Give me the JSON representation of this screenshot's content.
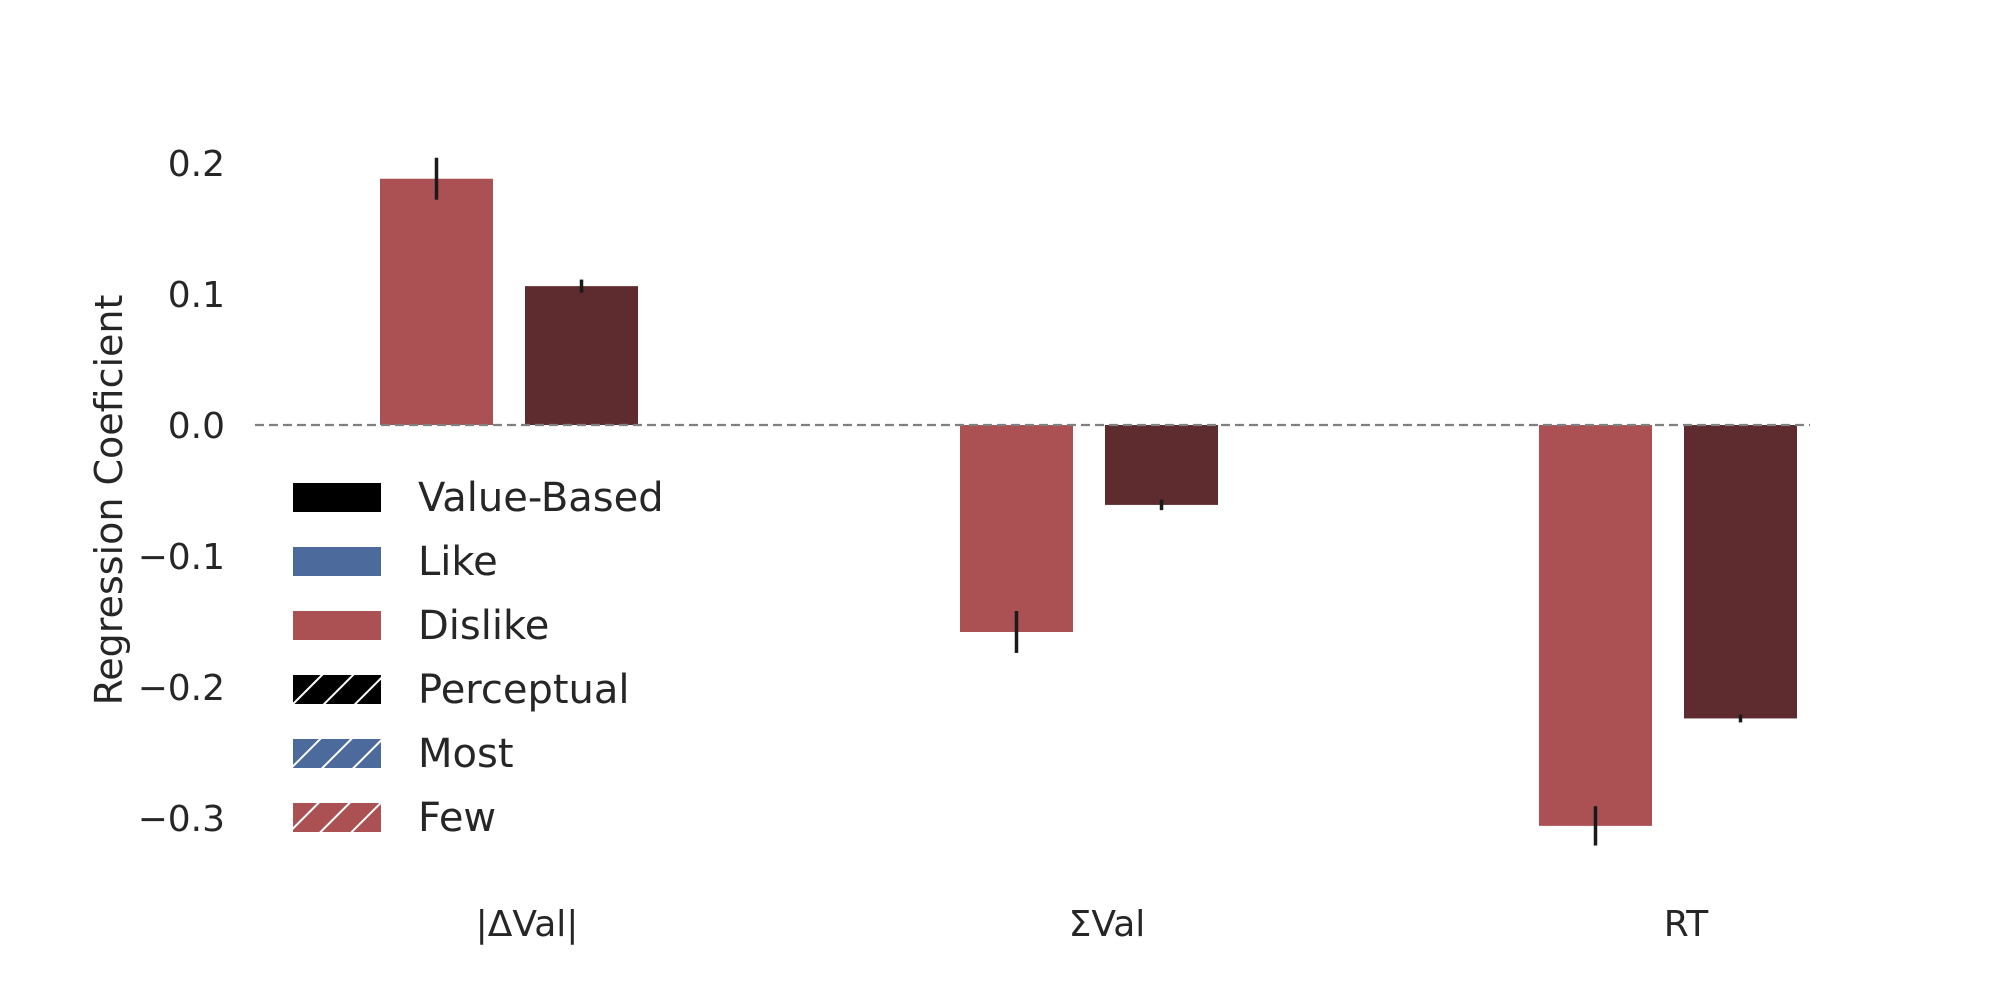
{
  "chart_data": {
    "type": "bar",
    "categories": [
      "|ΔVal|",
      "ΣVal",
      "RT"
    ],
    "series": [
      {
        "color": "#ab5053",
        "values": [
          0.188,
          -0.158,
          -0.306
        ],
        "errors": [
          0.016,
          0.016,
          0.015
        ]
      },
      {
        "color": "#5e2b2f",
        "values": [
          0.106,
          -0.061,
          -0.224
        ],
        "errors": [
          0.005,
          0.004,
          0.003
        ]
      }
    ],
    "ylabel": "Regression Coeficient",
    "xlabel": "",
    "ylim": [
      -0.33,
      0.22
    ],
    "yticks": [
      0.2,
      0.1,
      0.0,
      -0.1,
      -0.2,
      -0.3
    ],
    "ytick_labels": [
      "0.2",
      "0.1",
      "0.0",
      "−0.1",
      "−0.2",
      "−0.3"
    ],
    "zero_line": {
      "style": "dashed",
      "color": "#808080"
    },
    "grid": false,
    "legend": {
      "placement": "lower-left",
      "entries": [
        {
          "label": "Value-Based",
          "color": "#000000",
          "hatch": false
        },
        {
          "label": "Like",
          "color": "#4c6a9c",
          "hatch": false
        },
        {
          "label": "Dislike",
          "color": "#ab5053",
          "hatch": false
        },
        {
          "label": "Perceptual",
          "color": "#000000",
          "hatch": true
        },
        {
          "label": "Most",
          "color": "#4c6a9c",
          "hatch": true
        },
        {
          "label": "Few",
          "color": "#ab5053",
          "hatch": true
        }
      ]
    }
  }
}
